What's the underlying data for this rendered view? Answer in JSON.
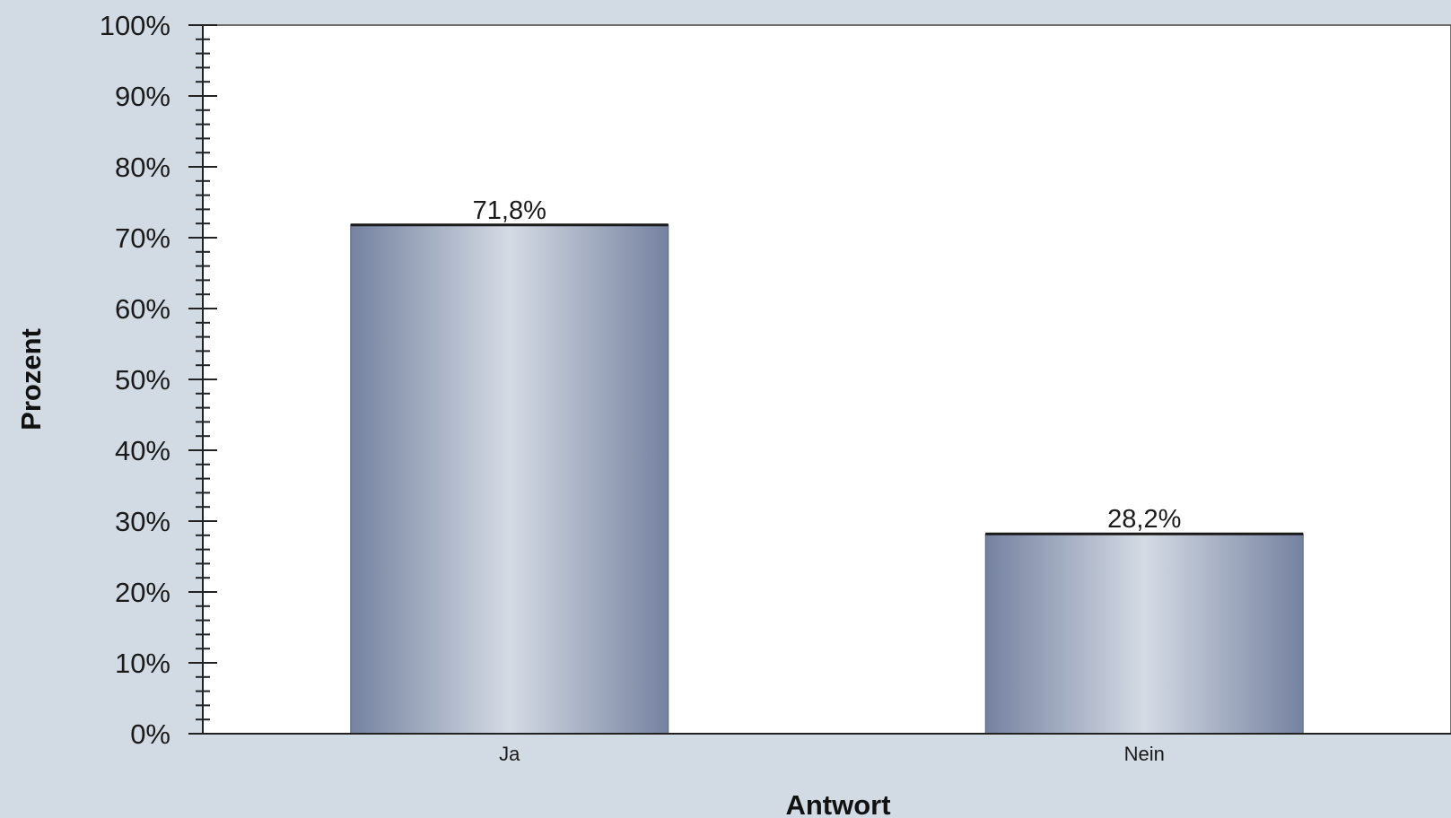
{
  "chart_data": {
    "type": "bar",
    "categories": [
      "Ja",
      "Nein"
    ],
    "values": [
      71.8,
      28.2
    ],
    "value_labels": [
      "71,8%",
      "28,2%"
    ],
    "xlabel": "Antwort",
    "ylabel": "Prozent",
    "ylim": [
      0,
      100
    ],
    "y_ticks": [
      0,
      10,
      20,
      30,
      40,
      50,
      60,
      70,
      80,
      90,
      100
    ],
    "y_tick_labels": [
      "0%",
      "10%",
      "20%",
      "30%",
      "40%",
      "50%",
      "60%",
      "70%",
      "80%",
      "90%",
      "100%"
    ],
    "grid": false,
    "legend": "none",
    "colors": {
      "page_background": "#d2dbe3",
      "plot_background": "#ffffff",
      "bar_edge": "#7582a0",
      "bar_center": "#d4dbe4",
      "bar_top_line": "#1a1a1a"
    }
  }
}
